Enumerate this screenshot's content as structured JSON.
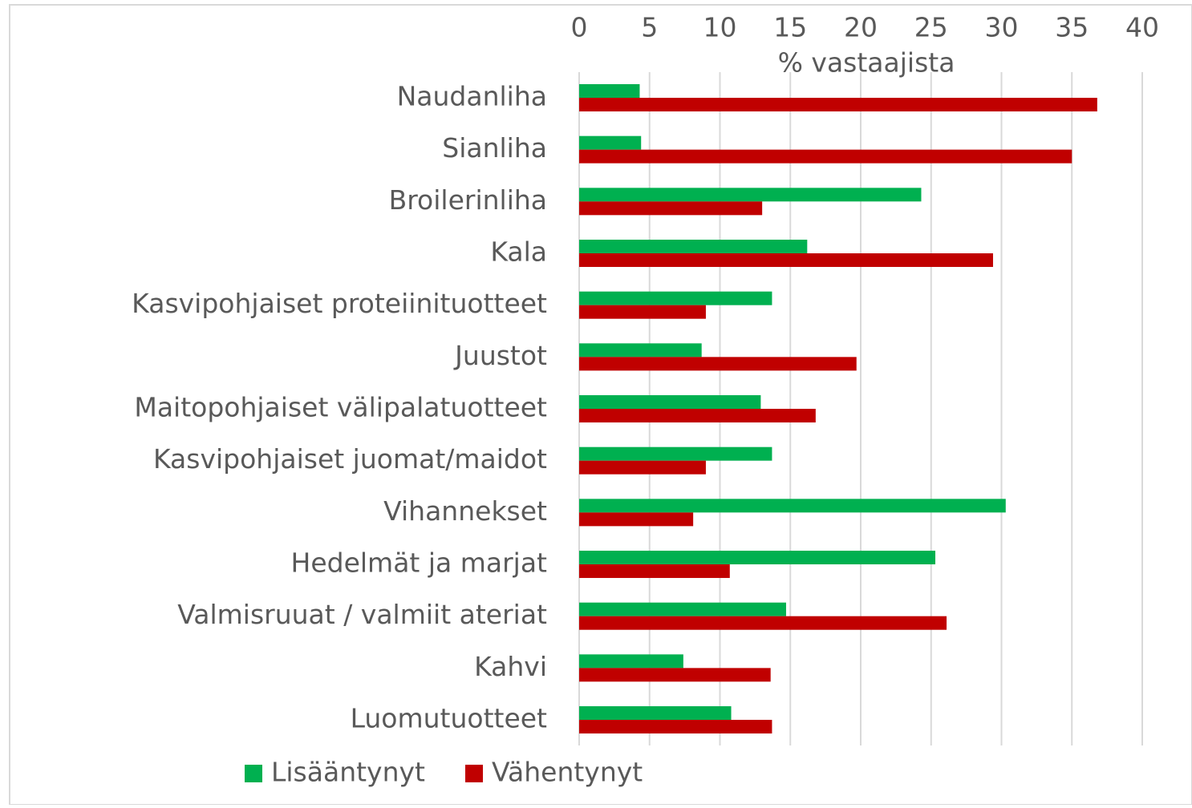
{
  "chart_data": {
    "type": "bar",
    "orientation": "horizontal",
    "x_label": "% vastaajista",
    "categories": [
      "Naudanliha",
      "Sianliha",
      "Broilerinliha",
      "Kala",
      "Kasvipohjaiset proteiinituotteet",
      "Juustot",
      "Maitopohjaiset välipalatuotteet",
      "Kasvipohjaiset juomat/maidot",
      "Vihannekset",
      "Hedelmät ja marjat",
      "Valmisruuat / valmiit ateriat",
      "Kahvi",
      "Luomutuotteet"
    ],
    "series": [
      {
        "name": "Lisääntynyt",
        "color": "#00b050",
        "values": [
          4.3,
          4.4,
          24.3,
          16.2,
          13.7,
          8.7,
          12.9,
          13.7,
          30.3,
          25.3,
          14.7,
          7.4,
          10.8
        ]
      },
      {
        "name": "Vähentynyt",
        "color": "#c00000",
        "values": [
          36.8,
          35.0,
          13.0,
          29.4,
          9.0,
          19.7,
          16.8,
          9.0,
          8.1,
          10.7,
          26.1,
          13.6,
          13.7
        ]
      }
    ],
    "xlim": [
      0,
      40
    ],
    "xticks": [
      0,
      5,
      10,
      15,
      20,
      25,
      30,
      35,
      40
    ],
    "grid": true,
    "legend": "bottom"
  }
}
